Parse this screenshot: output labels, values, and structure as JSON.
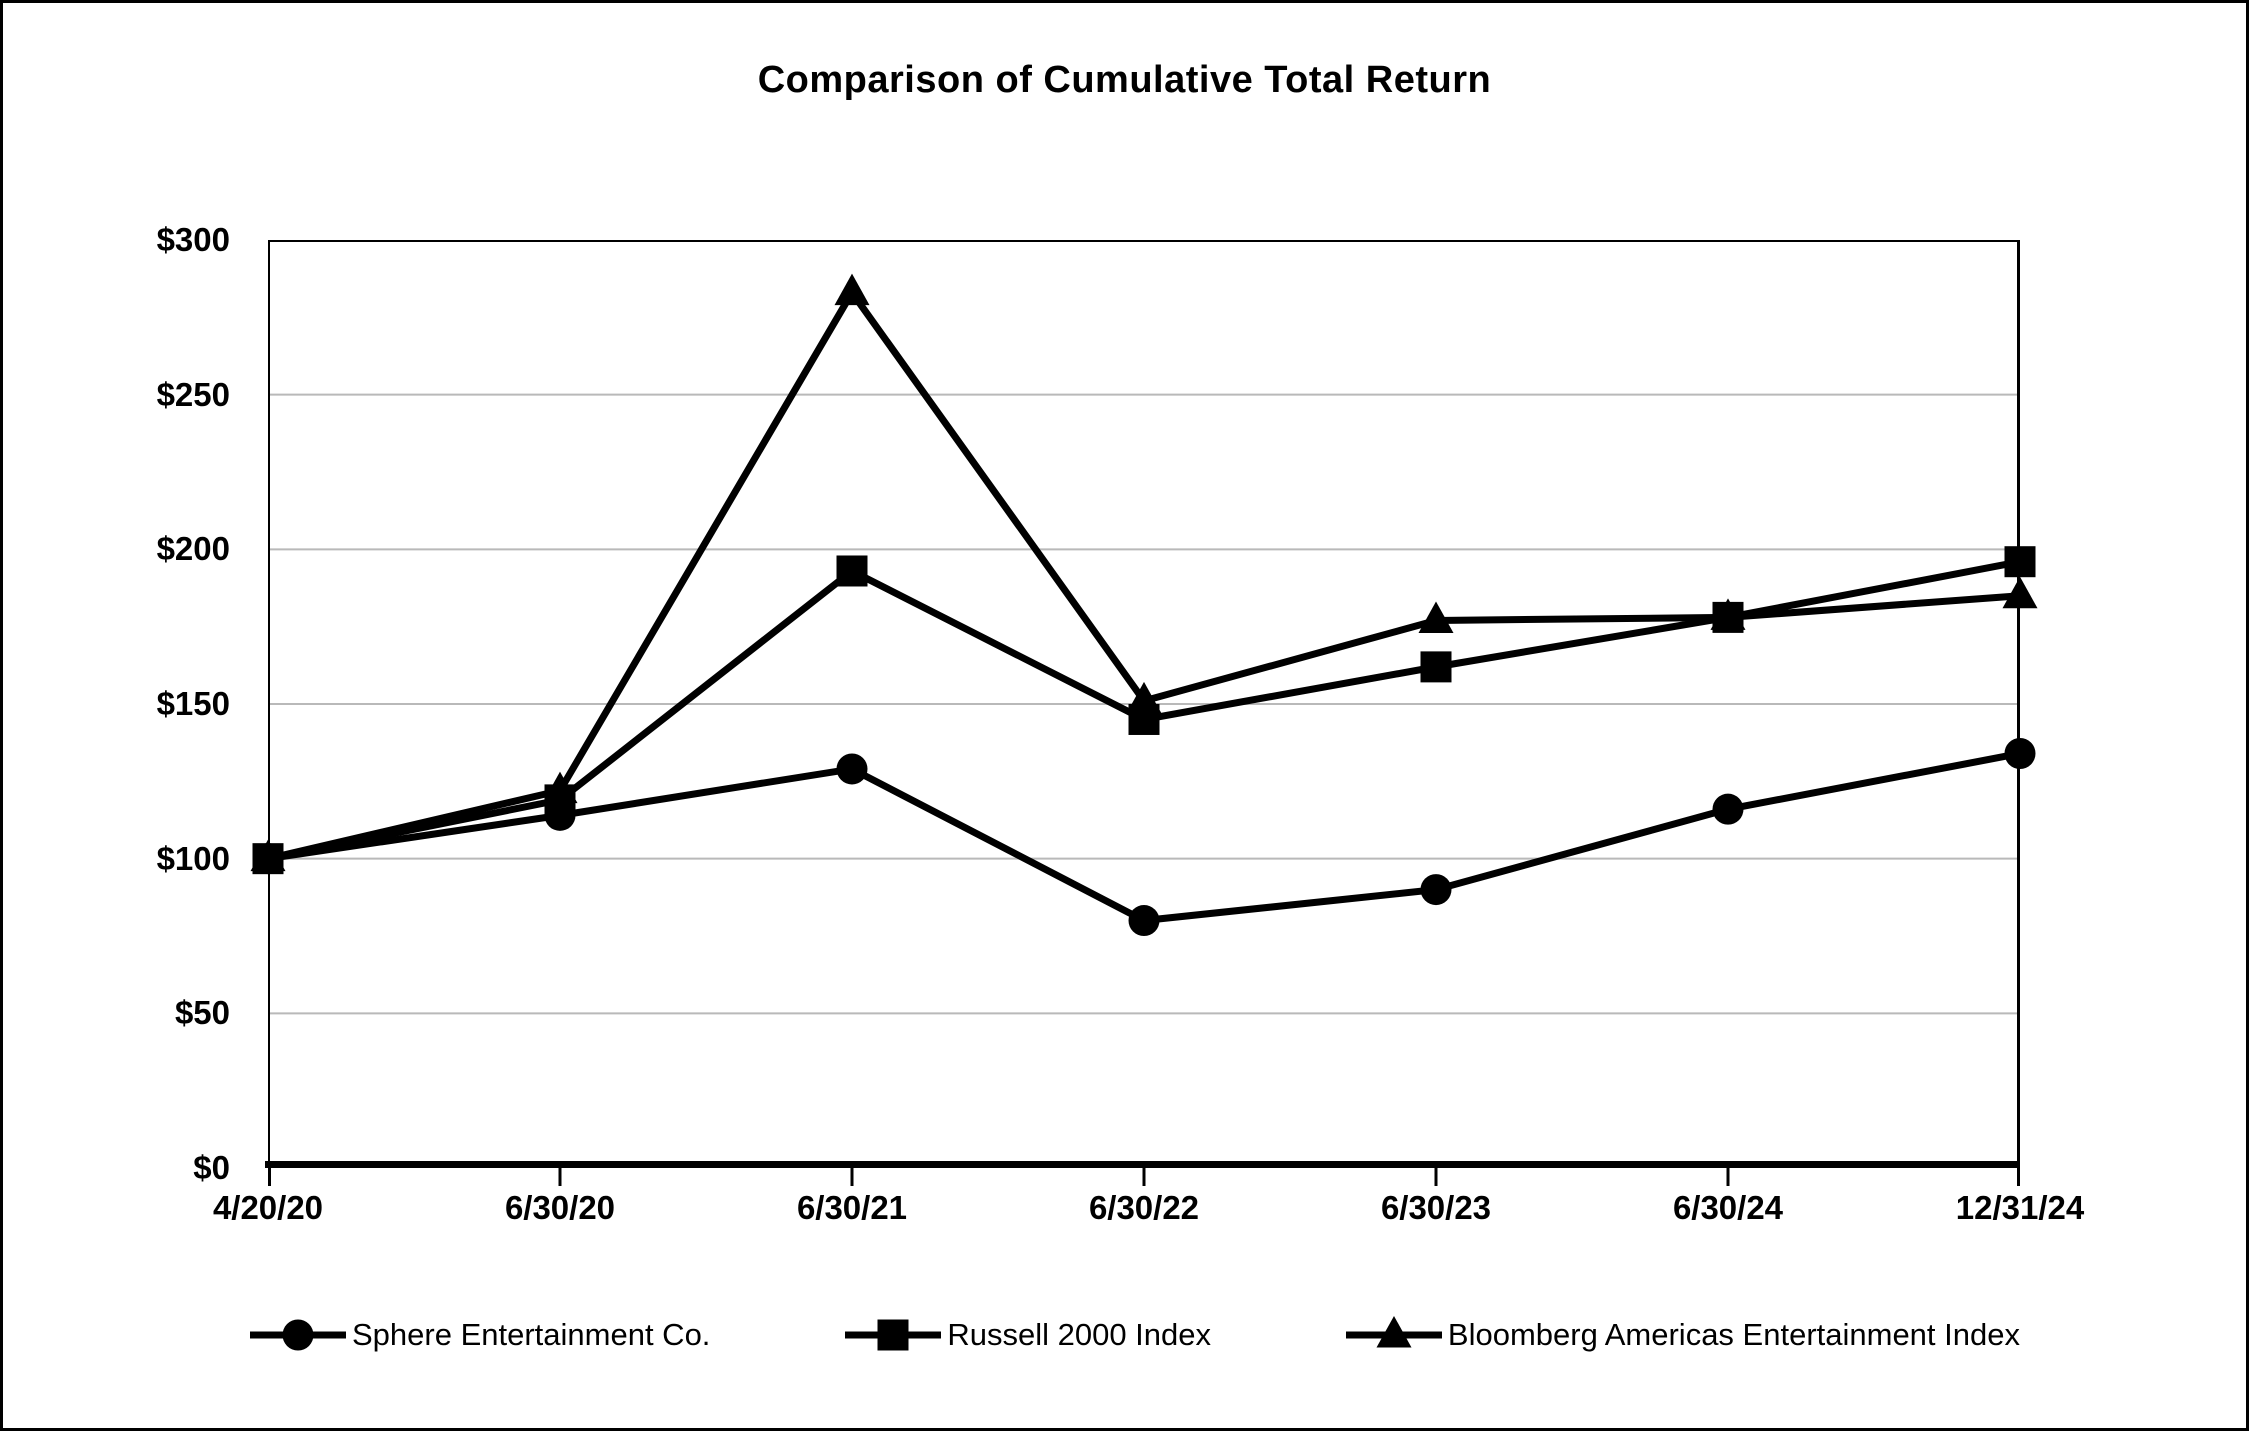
{
  "chart_data": {
    "type": "line",
    "title": "Comparison of Cumulative Total Return",
    "xlabel": "",
    "ylabel": "",
    "x": [
      "4/20/20",
      "6/30/20",
      "6/30/21",
      "6/30/22",
      "6/30/23",
      "6/30/24",
      "12/31/24"
    ],
    "series": [
      {
        "name": "Sphere Entertainment Co.",
        "marker": "circle",
        "color": "#000000",
        "values": [
          100,
          114,
          129,
          80,
          90,
          116,
          134
        ]
      },
      {
        "name": "Russell 2000 Index",
        "marker": "square",
        "color": "#000000",
        "values": [
          100,
          119,
          193,
          145,
          162,
          178,
          196
        ]
      },
      {
        "name": "Bloomberg Americas Entertainment Index",
        "marker": "triangle",
        "color": "#000000",
        "values": [
          100,
          122,
          283,
          151,
          177,
          178,
          185
        ]
      }
    ],
    "ylim": [
      0,
      300
    ],
    "y_ticks": [
      {
        "value": 300,
        "label": "$300"
      },
      {
        "value": 250,
        "label": "$250"
      },
      {
        "value": 200,
        "label": "$200"
      },
      {
        "value": 150,
        "label": "$150"
      },
      {
        "value": 100,
        "label": "$100"
      },
      {
        "value": 50,
        "label": "$50"
      },
      {
        "value": 0,
        "label": "$0"
      }
    ],
    "grid": "horizontal",
    "grid_color": "#b9b9b9",
    "axis_color": "#000000",
    "legend_position": "bottom"
  }
}
